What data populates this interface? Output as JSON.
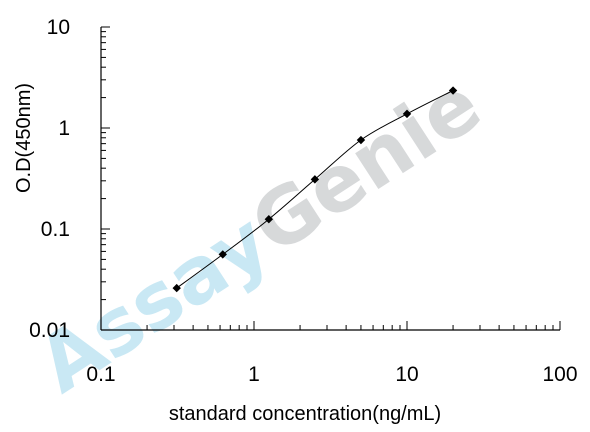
{
  "chart_data": {
    "type": "scatter",
    "xlabel": "standard concentration(ng/mL)",
    "ylabel": "O.D(450nm)",
    "x_scale": "log",
    "y_scale": "log",
    "xlim": [
      0.1,
      100
    ],
    "ylim": [
      0.01,
      10
    ],
    "x_tick_labels": [
      "0.1",
      "1",
      "10",
      "100"
    ],
    "y_tick_labels": [
      "0.01",
      "0.1",
      "1",
      "10"
    ],
    "grid": false,
    "legend": "none",
    "series": [
      {
        "x": [
          0.3125,
          0.625,
          1.25,
          2.5,
          5,
          10,
          20
        ],
        "y": [
          0.026,
          0.056,
          0.125,
          0.31,
          0.76,
          1.38,
          2.35
        ]
      }
    ],
    "line_color": "#000000",
    "marker_color": "#000000",
    "marker": "diamond"
  },
  "watermark": {
    "brand_prefix": "Assay",
    "brand_suffix": "Genie",
    "prefix_color": "#c4e6f3",
    "suffix_color": "#d3d5d7"
  }
}
